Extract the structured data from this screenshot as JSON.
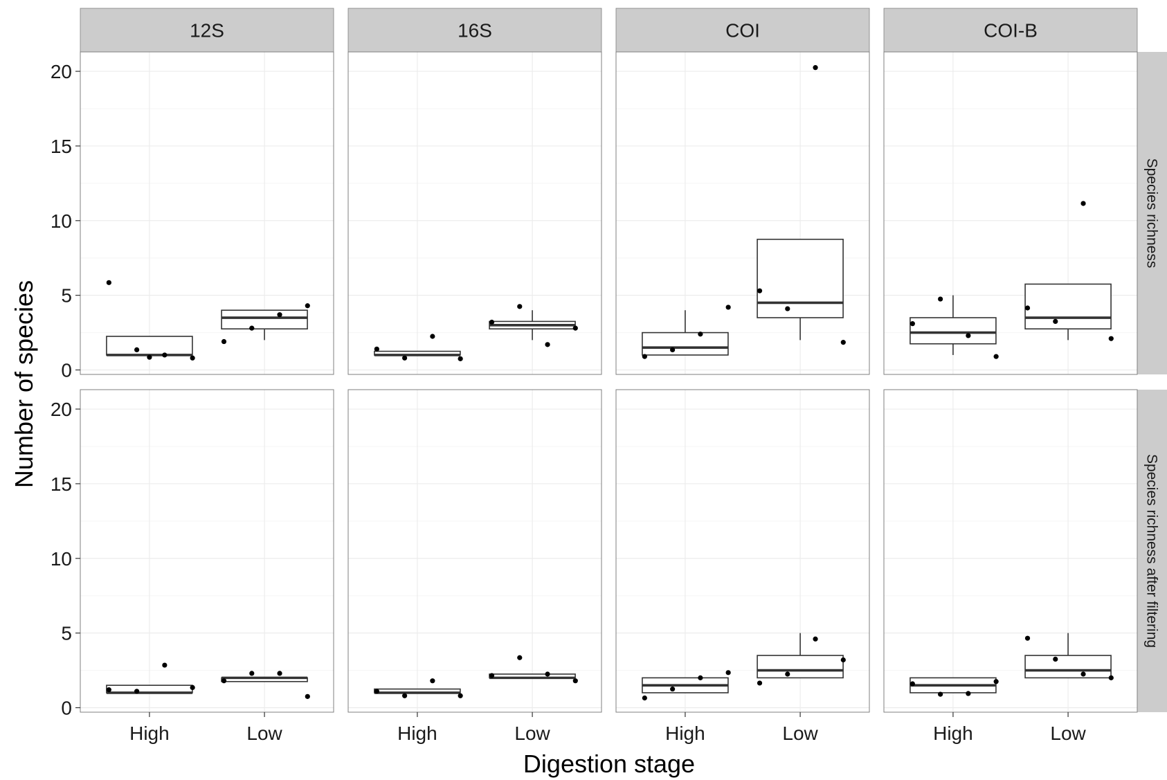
{
  "chart_data": {
    "type": "boxplot",
    "xlabel": "Digestion stage",
    "ylabel": "Number of species",
    "ylim": [
      -0.3,
      21.3
    ],
    "yticks": [
      0,
      5,
      10,
      15,
      20
    ],
    "categories": [
      "High",
      "Low"
    ],
    "columns": [
      "12S",
      "16S",
      "COI",
      "COI-B"
    ],
    "rows": [
      "Species richness",
      "Species richness after filtering"
    ],
    "grid": true,
    "colors": {
      "strip_bg": "#cccccc",
      "box_line": "#333333",
      "point": "#000000",
      "grid": "#ececec",
      "panel_border": "#7f7f7f"
    },
    "panels": [
      {
        "column": "12S",
        "row": "Species richness",
        "boxes": [
          {
            "category": "High",
            "min": 1,
            "q1": 1,
            "median": 1,
            "q3": 2.25,
            "max": 2.25,
            "points": [
              5.85,
              1.35,
              1.0,
              0.8,
              0.85
            ]
          },
          {
            "category": "Low",
            "min": 2,
            "q1": 2.75,
            "median": 3.5,
            "q3": 4,
            "max": 4,
            "points": [
              1.9,
              2.8,
              3.7,
              4.3
            ]
          }
        ]
      },
      {
        "column": "16S",
        "row": "Species richness",
        "boxes": [
          {
            "category": "High",
            "min": 1,
            "q1": 1,
            "median": 1,
            "q3": 1.25,
            "max": 1.25,
            "points": [
              1.4,
              0.8,
              2.25,
              0.75
            ]
          },
          {
            "category": "Low",
            "min": 2,
            "q1": 2.75,
            "median": 3,
            "q3": 3.25,
            "max": 4,
            "points": [
              3.2,
              4.25,
              1.7,
              2.8
            ]
          }
        ]
      },
      {
        "column": "COI",
        "row": "Species richness",
        "boxes": [
          {
            "category": "High",
            "min": 1,
            "q1": 1,
            "median": 1.5,
            "q3": 2.5,
            "max": 4,
            "points": [
              0.9,
              1.35,
              2.4,
              4.2
            ]
          },
          {
            "category": "Low",
            "min": 2,
            "q1": 3.5,
            "median": 4.5,
            "q3": 8.75,
            "max": 8.75,
            "points": [
              5.3,
              4.1,
              20.25,
              1.85
            ]
          }
        ]
      },
      {
        "column": "COI-B",
        "row": "Species richness",
        "boxes": [
          {
            "category": "High",
            "min": 1,
            "q1": 1.75,
            "median": 2.5,
            "q3": 3.5,
            "max": 5,
            "points": [
              3.1,
              4.75,
              2.3,
              0.9
            ]
          },
          {
            "category": "Low",
            "min": 2,
            "q1": 2.75,
            "median": 3.5,
            "q3": 5.75,
            "max": 5.75,
            "points": [
              4.15,
              3.25,
              11.15,
              2.1
            ]
          }
        ]
      },
      {
        "column": "12S",
        "row": "Species richness after filtering",
        "boxes": [
          {
            "category": "High",
            "min": 1,
            "q1": 1,
            "median": 1,
            "q3": 1.5,
            "max": 1.5,
            "points": [
              1.2,
              1.1,
              2.85,
              1.35
            ]
          },
          {
            "category": "Low",
            "min": 1.75,
            "q1": 1.75,
            "median": 2,
            "q3": 2,
            "max": 2,
            "points": [
              1.8,
              2.3,
              2.3,
              0.75
            ]
          }
        ]
      },
      {
        "column": "16S",
        "row": "Species richness after filtering",
        "boxes": [
          {
            "category": "High",
            "min": 1,
            "q1": 1,
            "median": 1,
            "q3": 1.25,
            "max": 1.25,
            "points": [
              1.1,
              0.8,
              1.8,
              0.8
            ]
          },
          {
            "category": "Low",
            "min": 2,
            "q1": 2,
            "median": 2,
            "q3": 2.25,
            "max": 2.25,
            "points": [
              2.15,
              3.35,
              2.25,
              1.8
            ]
          }
        ]
      },
      {
        "column": "COI",
        "row": "Species richness after filtering",
        "boxes": [
          {
            "category": "High",
            "min": 1,
            "q1": 1,
            "median": 1.5,
            "q3": 2,
            "max": 2,
            "points": [
              0.65,
              1.25,
              2.0,
              2.35
            ]
          },
          {
            "category": "Low",
            "min": 2,
            "q1": 2,
            "median": 2.5,
            "q3": 3.5,
            "max": 5,
            "points": [
              1.65,
              2.25,
              4.6,
              3.2
            ]
          }
        ]
      },
      {
        "column": "COI-B",
        "row": "Species richness after filtering",
        "boxes": [
          {
            "category": "High",
            "min": 1,
            "q1": 1,
            "median": 1.5,
            "q3": 2,
            "max": 2,
            "points": [
              1.6,
              0.9,
              0.95,
              1.75
            ]
          },
          {
            "category": "Low",
            "min": 2,
            "q1": 2,
            "median": 2.5,
            "q3": 3.5,
            "max": 5,
            "points": [
              4.65,
              3.25,
              2.25,
              2.0
            ]
          }
        ]
      }
    ]
  }
}
